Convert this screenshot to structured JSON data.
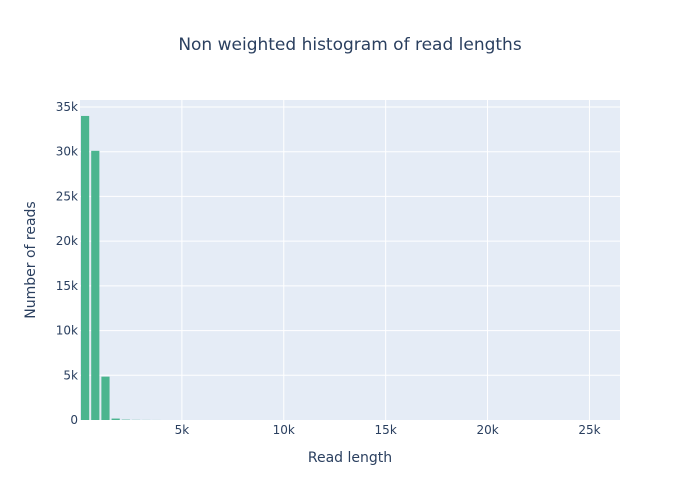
{
  "chart_data": {
    "type": "bar",
    "title": "Non weighted histogram of read lengths",
    "xlabel": "Read length",
    "ylabel": "Number of reads",
    "xlim": [
      0,
      26500
    ],
    "ylim": [
      0,
      35000
    ],
    "bin_width": 500,
    "bins": [
      {
        "x0": 0,
        "x1": 500,
        "value": 34000
      },
      {
        "x0": 500,
        "x1": 1000,
        "value": 30100
      },
      {
        "x0": 1000,
        "x1": 1500,
        "value": 4850
      },
      {
        "x0": 1500,
        "x1": 2000,
        "value": 160
      },
      {
        "x0": 2000,
        "x1": 2500,
        "value": 40
      },
      {
        "x0": 2500,
        "x1": 3000,
        "value": 15
      },
      {
        "x0": 3000,
        "x1": 3500,
        "value": 8
      },
      {
        "x0": 3500,
        "x1": 4000,
        "value": 4
      }
    ],
    "x_ticks": [
      {
        "value": 5000,
        "label": "5k"
      },
      {
        "value": 10000,
        "label": "10k"
      },
      {
        "value": 15000,
        "label": "15k"
      },
      {
        "value": 20000,
        "label": "20k"
      },
      {
        "value": 25000,
        "label": "25k"
      }
    ],
    "y_ticks": [
      {
        "value": 0,
        "label": "0"
      },
      {
        "value": 5000,
        "label": "5k"
      },
      {
        "value": 10000,
        "label": "10k"
      },
      {
        "value": 15000,
        "label": "15k"
      },
      {
        "value": 20000,
        "label": "20k"
      },
      {
        "value": 25000,
        "label": "25k"
      },
      {
        "value": 30000,
        "label": "30k"
      },
      {
        "value": 35000,
        "label": "35k"
      }
    ],
    "grid": true,
    "legend": "none",
    "colors": {
      "bar": "#4bb58f",
      "plot_bg": "#e5ecf6",
      "grid": "#ffffff",
      "text": "#2a3f5f"
    }
  }
}
